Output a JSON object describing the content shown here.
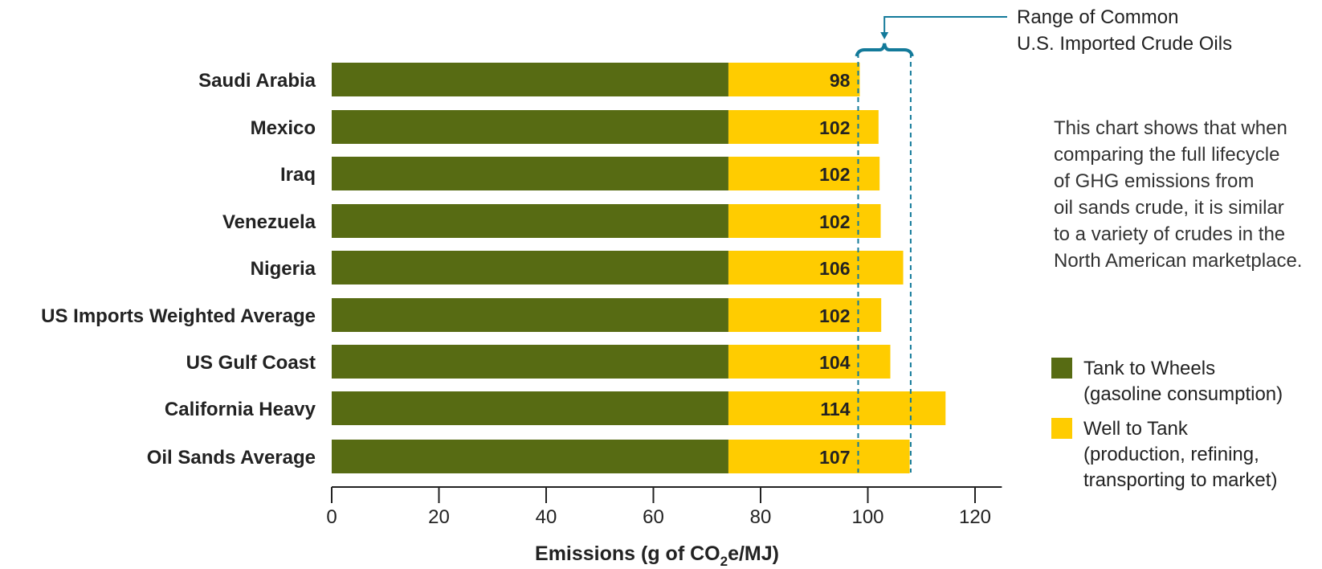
{
  "chart_data": {
    "type": "bar",
    "orientation": "horizontal",
    "stacked": true,
    "categories": [
      "Saudi Arabia",
      "Mexico",
      "Iraq",
      "Venezuela",
      "Nigeria",
      "US Imports Weighted Average",
      "US Gulf Coast",
      "California Heavy",
      "Oil Sands Average"
    ],
    "series": [
      {
        "name": "Tank to Wheels",
        "values": [
          74,
          74,
          74,
          74,
          74,
          74,
          74,
          74,
          74
        ]
      },
      {
        "name": "Well to Tank",
        "values": [
          24.5,
          28,
          28.2,
          28.4,
          32.6,
          28.5,
          30.2,
          40.5,
          33.8
        ]
      }
    ],
    "totals_labels": [
      "98",
      "102",
      "102",
      "102",
      "106",
      "102",
      "104",
      "114",
      "107"
    ],
    "xlabel_main": "Emissions (g of CO",
    "xlabel_sub": "2",
    "xlabel_tail": "e/MJ)",
    "xlim": [
      0,
      125
    ],
    "xticks": [
      0,
      20,
      40,
      60,
      80,
      100,
      120
    ],
    "range_band": [
      98.2,
      108
    ],
    "range_label_line1": "Range of Common",
    "range_label_line2": "U.S. Imported Crude Oils",
    "legend": [
      {
        "line1": "Tank to Wheels",
        "line2": "(gasoline consumption)",
        "line3": ""
      },
      {
        "line1": "Well to Tank",
        "line2": "(production, refining,",
        "line3": "transporting to market)"
      }
    ],
    "legend_position": "right",
    "note_lines": [
      "This chart shows that when",
      "comparing the full lifecycle",
      "of GHG emissions from",
      "oil sands crude, it is similar",
      "to a variety of crudes in the",
      "North American marketplace."
    ],
    "grid": false
  },
  "colors": {
    "tank_to_wheels": "#576b13",
    "well_to_tank": "#ffcc00",
    "range_band": "#137a9a",
    "axis": "#222222"
  }
}
